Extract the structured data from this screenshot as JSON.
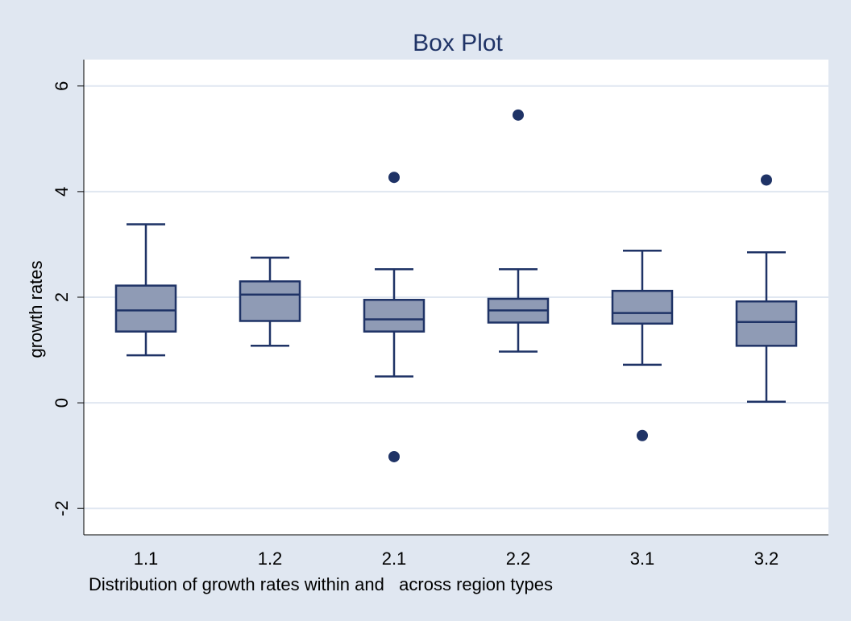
{
  "chart_data": {
    "type": "box",
    "title": "Box Plot",
    "xlabel": "Distribution of growth rates within and   across region types",
    "ylabel": "growth rates",
    "ylim": [
      -2.5,
      6.5
    ],
    "yticks": [
      -2,
      0,
      2,
      4,
      6
    ],
    "grid": true,
    "categories": [
      "1.1",
      "1.2",
      "2.1",
      "2.2",
      "3.1",
      "3.2"
    ],
    "boxes": [
      {
        "category": "1.1",
        "whisker_low": 0.9,
        "q1": 1.35,
        "median": 1.75,
        "q3": 2.22,
        "whisker_high": 3.38,
        "outliers": []
      },
      {
        "category": "1.2",
        "whisker_low": 1.08,
        "q1": 1.55,
        "median": 2.05,
        "q3": 2.3,
        "whisker_high": 2.75,
        "outliers": []
      },
      {
        "category": "2.1",
        "whisker_low": 0.5,
        "q1": 1.35,
        "median": 1.58,
        "q3": 1.95,
        "whisker_high": 2.53,
        "outliers": [
          4.27,
          -1.02
        ]
      },
      {
        "category": "2.2",
        "whisker_low": 0.97,
        "q1": 1.52,
        "median": 1.75,
        "q3": 1.97,
        "whisker_high": 2.53,
        "outliers": [
          5.45
        ]
      },
      {
        "category": "3.1",
        "whisker_low": 0.72,
        "q1": 1.5,
        "median": 1.7,
        "q3": 2.12,
        "whisker_high": 2.88,
        "outliers": [
          -0.62
        ]
      },
      {
        "category": "3.2",
        "whisker_low": 0.02,
        "q1": 1.08,
        "median": 1.53,
        "q3": 1.92,
        "whisker_high": 2.85,
        "outliers": [
          4.22
        ]
      }
    ],
    "colors": {
      "background": "#e0e7f1",
      "plot_background": "#ffffff",
      "grid": "#e0e7f1",
      "box_fill": "#8f9bb5",
      "stroke": "#1f3366",
      "outlier": "#1f3366",
      "title": "#1f3366"
    }
  }
}
